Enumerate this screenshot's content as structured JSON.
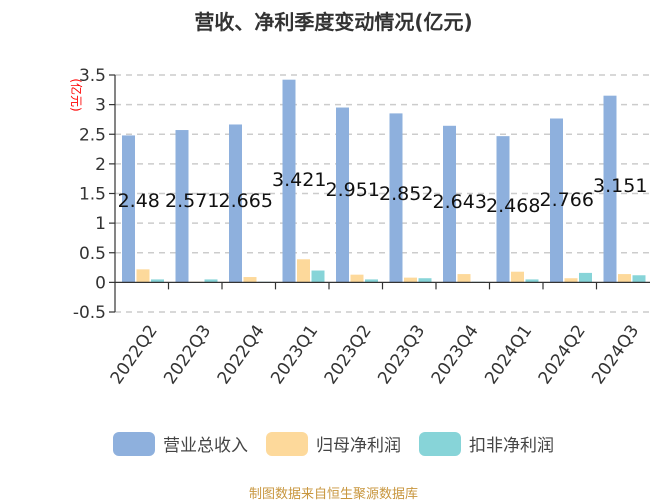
{
  "title": "营收、净利季度变动情况(亿元)",
  "source_note": "制图数据来自恒生聚源数据库",
  "y_unit_label": "(亿元)",
  "colors": {
    "revenue": "#8eb0dd",
    "net_profit": "#fdd99b",
    "deducted_net_profit": "#87d4d8",
    "unit_label": "#ff0000",
    "grid": "#cccccc",
    "axis": "#333333",
    "source": "#c8963e"
  },
  "legend": [
    {
      "name": "营业总收入",
      "color": "#8eb0dd"
    },
    {
      "name": "归母净利润",
      "color": "#fdd99b"
    },
    {
      "name": "扣非净利润",
      "color": "#87d4d8"
    }
  ],
  "chart_data": {
    "type": "bar",
    "title": "营收、净利季度变动情况(亿元)",
    "xlabel": "",
    "ylabel": "(亿元)",
    "ylim": [
      -0.5,
      3.5
    ],
    "yticks": [
      -0.5,
      0,
      0.5,
      1,
      1.5,
      2,
      2.5,
      3,
      3.5
    ],
    "ytick_labels": [
      "-0.5",
      "0",
      "0.5",
      "1",
      "1.5",
      "2",
      "2.5",
      "3",
      "3.5"
    ],
    "grid": true,
    "legend_position": "bottom",
    "categories": [
      "2022Q2",
      "2022Q3",
      "2022Q4",
      "2023Q1",
      "2023Q2",
      "2023Q3",
      "2023Q4",
      "2024Q1",
      "2024Q2",
      "2024Q3"
    ],
    "series": [
      {
        "name": "营业总收入",
        "values": [
          2.48,
          2.571,
          2.665,
          3.421,
          2.951,
          2.852,
          2.643,
          2.468,
          2.766,
          3.151
        ],
        "data_labels": [
          "2.48",
          "2.571",
          "2.665",
          "3.421",
          "2.951",
          "2.852",
          "2.643",
          "2.468",
          "2.766",
          "3.151"
        ]
      },
      {
        "name": "归母净利润",
        "values": [
          0.22,
          0.01,
          0.09,
          0.39,
          0.13,
          0.08,
          0.14,
          0.18,
          0.07,
          0.14
        ]
      },
      {
        "name": "扣非净利润",
        "values": [
          0.05,
          0.05,
          0.01,
          0.2,
          0.05,
          0.07,
          0.01,
          0.05,
          0.16,
          0.12
        ]
      }
    ]
  }
}
